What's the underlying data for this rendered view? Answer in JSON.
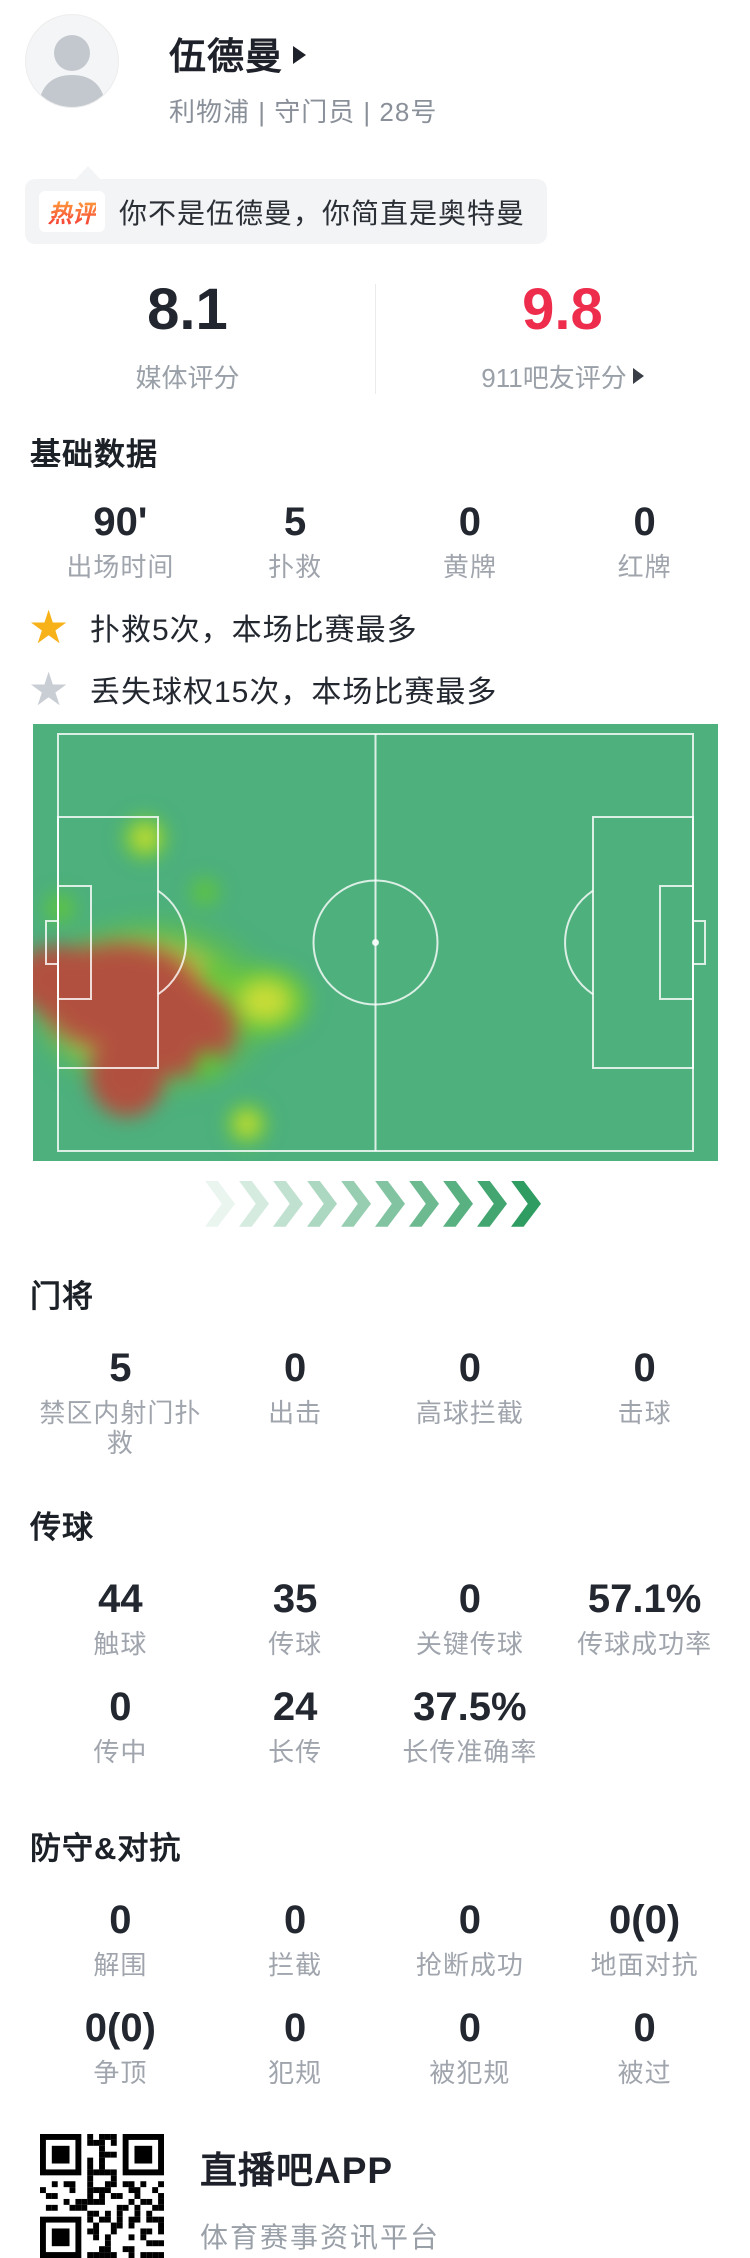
{
  "header": {
    "name": "伍德曼",
    "meta": "利物浦 | 守门员 | 28号"
  },
  "hot_comment": {
    "badge": "热评",
    "text": "你不是伍德曼，你简直是奥特曼"
  },
  "ratings": {
    "media": {
      "value": "8.1",
      "label": "媒体评分"
    },
    "fans": {
      "value": "9.8",
      "label": "911吧友评分"
    }
  },
  "basic": {
    "title": "基础数据",
    "cells": [
      {
        "v": "90'",
        "l": "出场时间"
      },
      {
        "v": "5",
        "l": "扑救"
      },
      {
        "v": "0",
        "l": "黄牌"
      },
      {
        "v": "0",
        "l": "红牌"
      }
    ]
  },
  "highlights": [
    {
      "icon": "star-gold",
      "text": "扑救5次，本场比赛最多"
    },
    {
      "icon": "star-gray",
      "text": "丢失球权15次，本场比赛最多"
    }
  ],
  "heatmap": {
    "description": "活动热区集中在本方禁区（左侧门将区域）",
    "pitch_color": "#4db07d",
    "heat_core_color": "#b2503f"
  },
  "goalkeeper": {
    "title": "门将",
    "cells": [
      {
        "v": "5",
        "l": "禁区内射门扑救"
      },
      {
        "v": "0",
        "l": "出击"
      },
      {
        "v": "0",
        "l": "高球拦截"
      },
      {
        "v": "0",
        "l": "击球"
      }
    ]
  },
  "passing": {
    "title": "传球",
    "row1": [
      {
        "v": "44",
        "l": "触球"
      },
      {
        "v": "35",
        "l": "传球"
      },
      {
        "v": "0",
        "l": "关键传球"
      },
      {
        "v": "57.1%",
        "l": "传球成功率"
      }
    ],
    "row2": [
      {
        "v": "0",
        "l": "传中"
      },
      {
        "v": "24",
        "l": "长传"
      },
      {
        "v": "37.5%",
        "l": "长传准确率"
      }
    ]
  },
  "defense": {
    "title": "防守&对抗",
    "row1": [
      {
        "v": "0",
        "l": "解围"
      },
      {
        "v": "0",
        "l": "拦截"
      },
      {
        "v": "0",
        "l": "抢断成功"
      },
      {
        "v": "0(0)",
        "l": "地面对抗"
      }
    ],
    "row2": [
      {
        "v": "0(0)",
        "l": "争顶"
      },
      {
        "v": "0",
        "l": "犯规"
      },
      {
        "v": "0",
        "l": "被犯规"
      },
      {
        "v": "0",
        "l": "被过"
      }
    ]
  },
  "footer": {
    "app_name": "直播吧APP",
    "tagline": "体育赛事资讯平台"
  },
  "colors": {
    "rating_red": "#ee2c4c",
    "star_gold": "#f7b21a",
    "star_gray": "#c9cdd4",
    "pitch_green": "#4db07d",
    "chevron_green": "#2f9c62"
  }
}
